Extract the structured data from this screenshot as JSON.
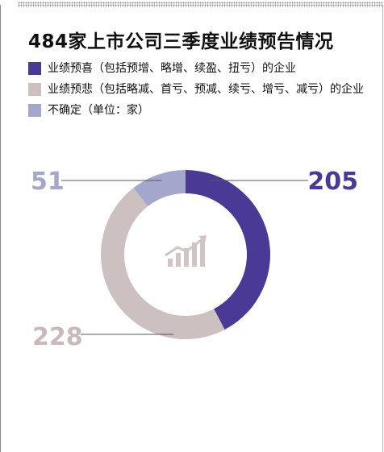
{
  "title": "484家上市公司三季度业绩预告情况",
  "legend": [
    {
      "label": "业绩预喜（包括预增、略增、续盈、扭亏）的企业",
      "color": "#4a3a96"
    },
    {
      "label": "业绩预悲（包括略减、首亏、预减、续亏、增亏、减亏）的企业",
      "color": "#ccc0c0"
    },
    {
      "label": "不确定（单位：家）",
      "color": "#a3a7cb"
    }
  ],
  "chart_data": {
    "type": "pie",
    "style": "donut",
    "title": "484家上市公司三季度业绩预告情况",
    "unit": "家",
    "total": 484,
    "categories": [
      "业绩预喜（包括预增、略增、续盈、扭亏）的企业",
      "业绩预悲（包括略减、首亏、预减、续亏、增亏、减亏）的企业",
      "不确定"
    ],
    "values": [
      205,
      228,
      51
    ],
    "labels": [
      "205",
      "228",
      "51"
    ],
    "colors": [
      "#4a3a96",
      "#ccc0c0",
      "#a3a7cb"
    ],
    "label_colors": [
      "#4a3a96",
      "#c9b9b9",
      "#a3a7cb"
    ],
    "center_icon": "growth-chart-icon"
  }
}
